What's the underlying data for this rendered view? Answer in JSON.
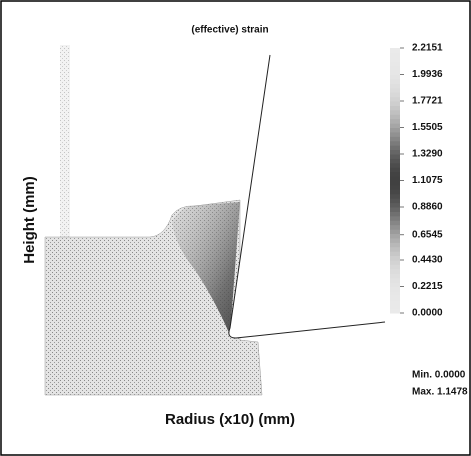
{
  "chart_data": {
    "type": "contour",
    "title": "(effective) strain",
    "xlabel": "Radius (x10) (mm)",
    "ylabel": "Height (mm)",
    "clim": [
      0,
      2.2151
    ],
    "cticks": [
      {
        "value": 0,
        "label": "0.0000"
      },
      0.2215,
      {
        "value": 0.443,
        "label": "0.4430"
      },
      0.6545,
      {
        "value": 0.886,
        "label": "0.8860"
      },
      1.1075,
      {
        "value": 1.329,
        "label": "1.3290"
      },
      1.5505,
      1.7721,
      1.9936,
      2.2151
    ],
    "annotations": [
      "Min. 0.0000",
      "Max. 1.1478"
    ]
  }
}
